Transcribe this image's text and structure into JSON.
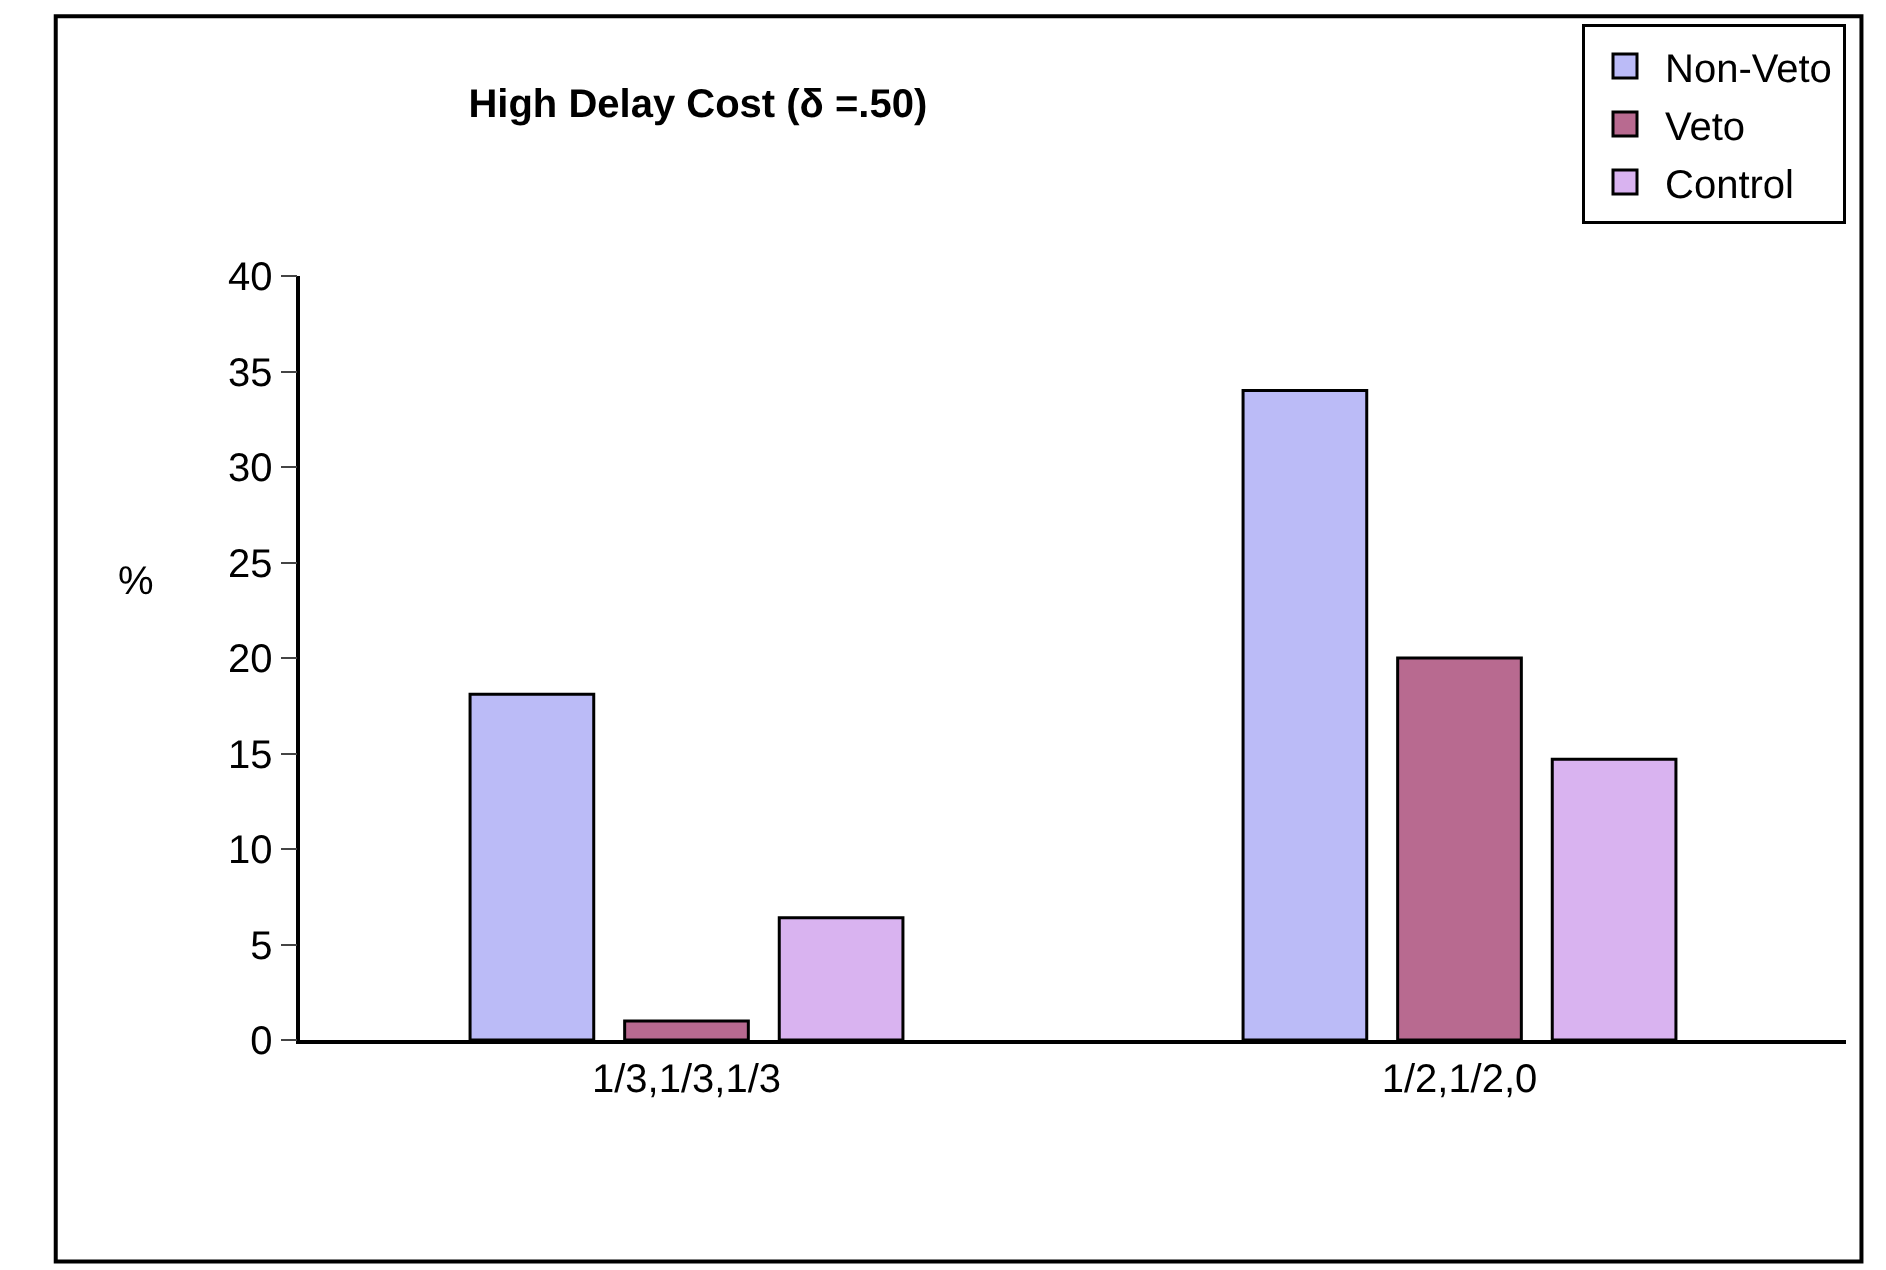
{
  "chart_data": {
    "type": "bar",
    "title": "High Delay Cost (δ =.50)",
    "ylabel": "%",
    "categories": [
      "1/3,1/3,1/3",
      "1/2,1/2,0"
    ],
    "series": [
      {
        "name": "Non-Veto",
        "color": "#bbbbf7",
        "values": [
          18.1,
          34
        ]
      },
      {
        "name": "Veto",
        "color": "#b86a90",
        "values": [
          1,
          20
        ]
      },
      {
        "name": "Control",
        "color": "#d9b3f0",
        "values": [
          6.4,
          14.7
        ]
      }
    ],
    "ylim": [
      0,
      40
    ],
    "yticks": [
      0,
      5,
      10,
      15,
      20,
      25,
      30,
      35,
      40
    ],
    "legend": "top right"
  }
}
